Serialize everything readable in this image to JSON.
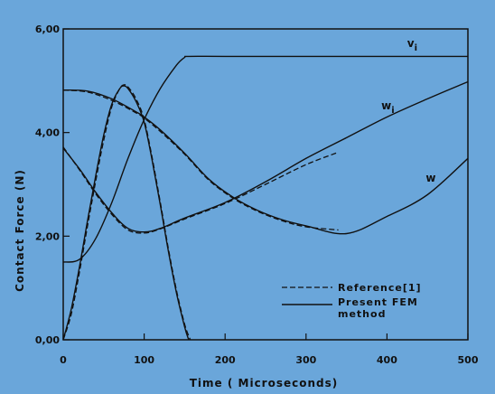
{
  "chart_data": {
    "type": "line",
    "title": "",
    "xlabel": "Time ( Microseconds)",
    "ylabel": "Contact Force (N)",
    "xlim": [
      0,
      500
    ],
    "ylim": [
      0,
      6
    ],
    "x_ticks": [
      {
        "value": 0,
        "label": "0"
      },
      {
        "value": 100,
        "label": "100"
      },
      {
        "value": 200,
        "label": "200"
      },
      {
        "value": 300,
        "label": "300"
      },
      {
        "value": 400,
        "label": "400"
      },
      {
        "value": 500,
        "label": "500"
      }
    ],
    "y_ticks": [
      {
        "value": 0,
        "label": "0,00"
      },
      {
        "value": 2,
        "label": "2,00"
      },
      {
        "value": 4,
        "label": "4,00"
      },
      {
        "value": 6,
        "label": "6,00"
      }
    ],
    "grid": false,
    "legend_position": "bottom-right",
    "legend": [
      {
        "label": "Reference[1]",
        "style": "dashed"
      },
      {
        "label": "Present FEM method",
        "style": "solid"
      }
    ],
    "series": [
      {
        "name": "Present FEM method",
        "style": "solid",
        "curve": "contact-force",
        "x": [
          0,
          10,
          20,
          30,
          40,
          50,
          60,
          70,
          75,
          80,
          90,
          100,
          110,
          120,
          130,
          140,
          150,
          155
        ],
        "y": [
          0,
          0.6,
          1.4,
          2.3,
          3.15,
          3.95,
          4.55,
          4.85,
          4.9,
          4.85,
          4.6,
          4.2,
          3.45,
          2.6,
          1.7,
          0.9,
          0.25,
          0
        ]
      },
      {
        "name": "Reference[1]",
        "style": "dashed",
        "curve": "contact-force",
        "x": [
          0,
          10,
          20,
          30,
          40,
          50,
          60,
          70,
          75,
          80,
          90,
          100,
          110,
          120,
          130,
          140,
          150,
          157
        ],
        "y": [
          0,
          0.5,
          1.3,
          2.2,
          3.05,
          3.85,
          4.5,
          4.85,
          4.92,
          4.88,
          4.65,
          4.25,
          3.5,
          2.65,
          1.75,
          0.95,
          0.3,
          0
        ]
      },
      {
        "name": "Present FEM method",
        "style": "solid",
        "curve": "v_i",
        "x": [
          0,
          20,
          40,
          60,
          80,
          100,
          120,
          140,
          150,
          155,
          200,
          300,
          400,
          500
        ],
        "y": [
          1.5,
          1.55,
          1.95,
          2.65,
          3.5,
          4.25,
          4.85,
          5.3,
          5.45,
          5.47,
          5.47,
          5.47,
          5.47,
          5.47
        ]
      },
      {
        "name": "Present FEM method",
        "style": "solid",
        "curve": "w_i",
        "x": [
          0,
          30,
          60,
          90,
          100,
          120,
          150,
          180,
          210,
          240,
          270,
          300,
          350,
          400,
          450,
          500
        ],
        "y": [
          4.82,
          4.8,
          4.65,
          4.4,
          4.3,
          4.05,
          3.6,
          3.1,
          2.75,
          2.5,
          2.32,
          2.2,
          2.05,
          2.38,
          2.8,
          3.5
        ]
      },
      {
        "name": "Reference[1]",
        "style": "dashed",
        "curve": "w_i",
        "x": [
          0,
          30,
          60,
          90,
          100,
          120,
          150,
          180,
          210,
          240,
          270,
          300,
          340
        ],
        "y": [
          4.82,
          4.78,
          4.62,
          4.38,
          4.28,
          4.02,
          3.58,
          3.08,
          2.73,
          2.48,
          2.3,
          2.18,
          2.12
        ]
      },
      {
        "name": "Present FEM method",
        "style": "solid",
        "curve": "w",
        "x": [
          0,
          20,
          40,
          60,
          80,
          100,
          120,
          150,
          200,
          250,
          300,
          350,
          400,
          450,
          500
        ],
        "y": [
          3.7,
          3.3,
          2.85,
          2.45,
          2.15,
          2.08,
          2.15,
          2.35,
          2.65,
          3.05,
          3.5,
          3.9,
          4.3,
          4.65,
          4.98
        ]
      },
      {
        "name": "Reference[1]",
        "style": "dashed",
        "curve": "w",
        "x": [
          0,
          20,
          40,
          60,
          80,
          100,
          120,
          150,
          200,
          250,
          300,
          340
        ],
        "y": [
          3.72,
          3.28,
          2.82,
          2.42,
          2.12,
          2.06,
          2.14,
          2.33,
          2.63,
          3.0,
          3.38,
          3.62
        ]
      }
    ],
    "annotations": [
      {
        "text": "v",
        "sub": "i",
        "x": 425,
        "y": 5.65
      },
      {
        "text": "w",
        "sub": "i",
        "x": 393,
        "y": 4.45
      },
      {
        "text": "w",
        "sub": "",
        "x": 448,
        "y": 3.05
      }
    ]
  }
}
